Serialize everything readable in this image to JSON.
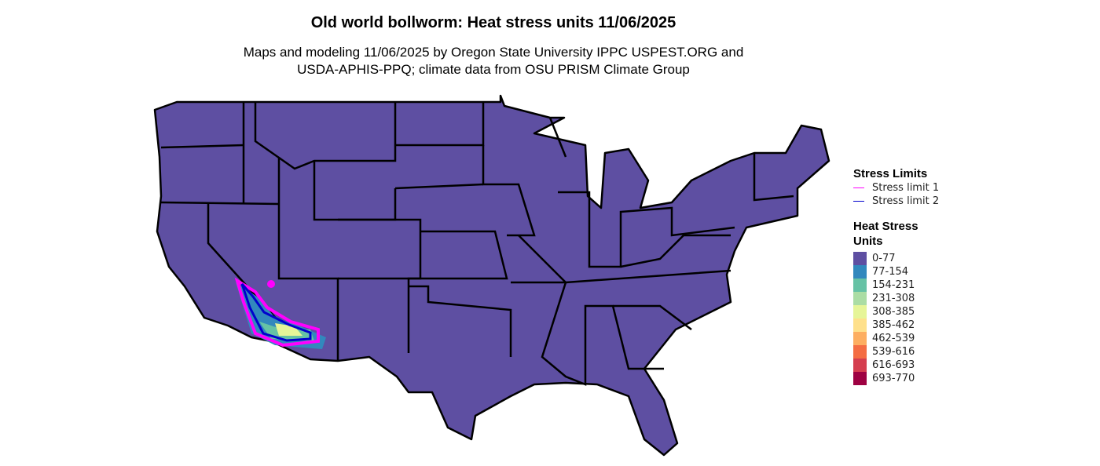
{
  "title": "Old world bollworm: Heat stress units 11/06/2025",
  "subtitle_line1": "Maps and modeling 11/06/2025 by Oregon State University IPPC USPEST.ORG and",
  "subtitle_line2": "USDA-APHIS-PPQ; climate data from OSU PRISM Climate Group",
  "legend": {
    "stress_title": "Stress Limits",
    "stress_items": [
      {
        "label": "Stress limit 1",
        "color": "#FF00FF"
      },
      {
        "label": "Stress limit 2",
        "color": "#0000CD"
      }
    ],
    "heat_title_1": "Heat Stress",
    "heat_title_2": "Units",
    "heat_items": [
      {
        "label": "0-77",
        "color": "#5E4FA2"
      },
      {
        "label": "77-154",
        "color": "#3288BD"
      },
      {
        "label": "154-231",
        "color": "#66C2A5"
      },
      {
        "label": "231-308",
        "color": "#ABDDA4"
      },
      {
        "label": "308-385",
        "color": "#E6F598"
      },
      {
        "label": "385-462",
        "color": "#FEE08B"
      },
      {
        "label": "462-539",
        "color": "#FDAE61"
      },
      {
        "label": "539-616",
        "color": "#F46D43"
      },
      {
        "label": "616-693",
        "color": "#D53E4F"
      },
      {
        "label": "693-770",
        "color": "#9E0142"
      }
    ]
  }
}
